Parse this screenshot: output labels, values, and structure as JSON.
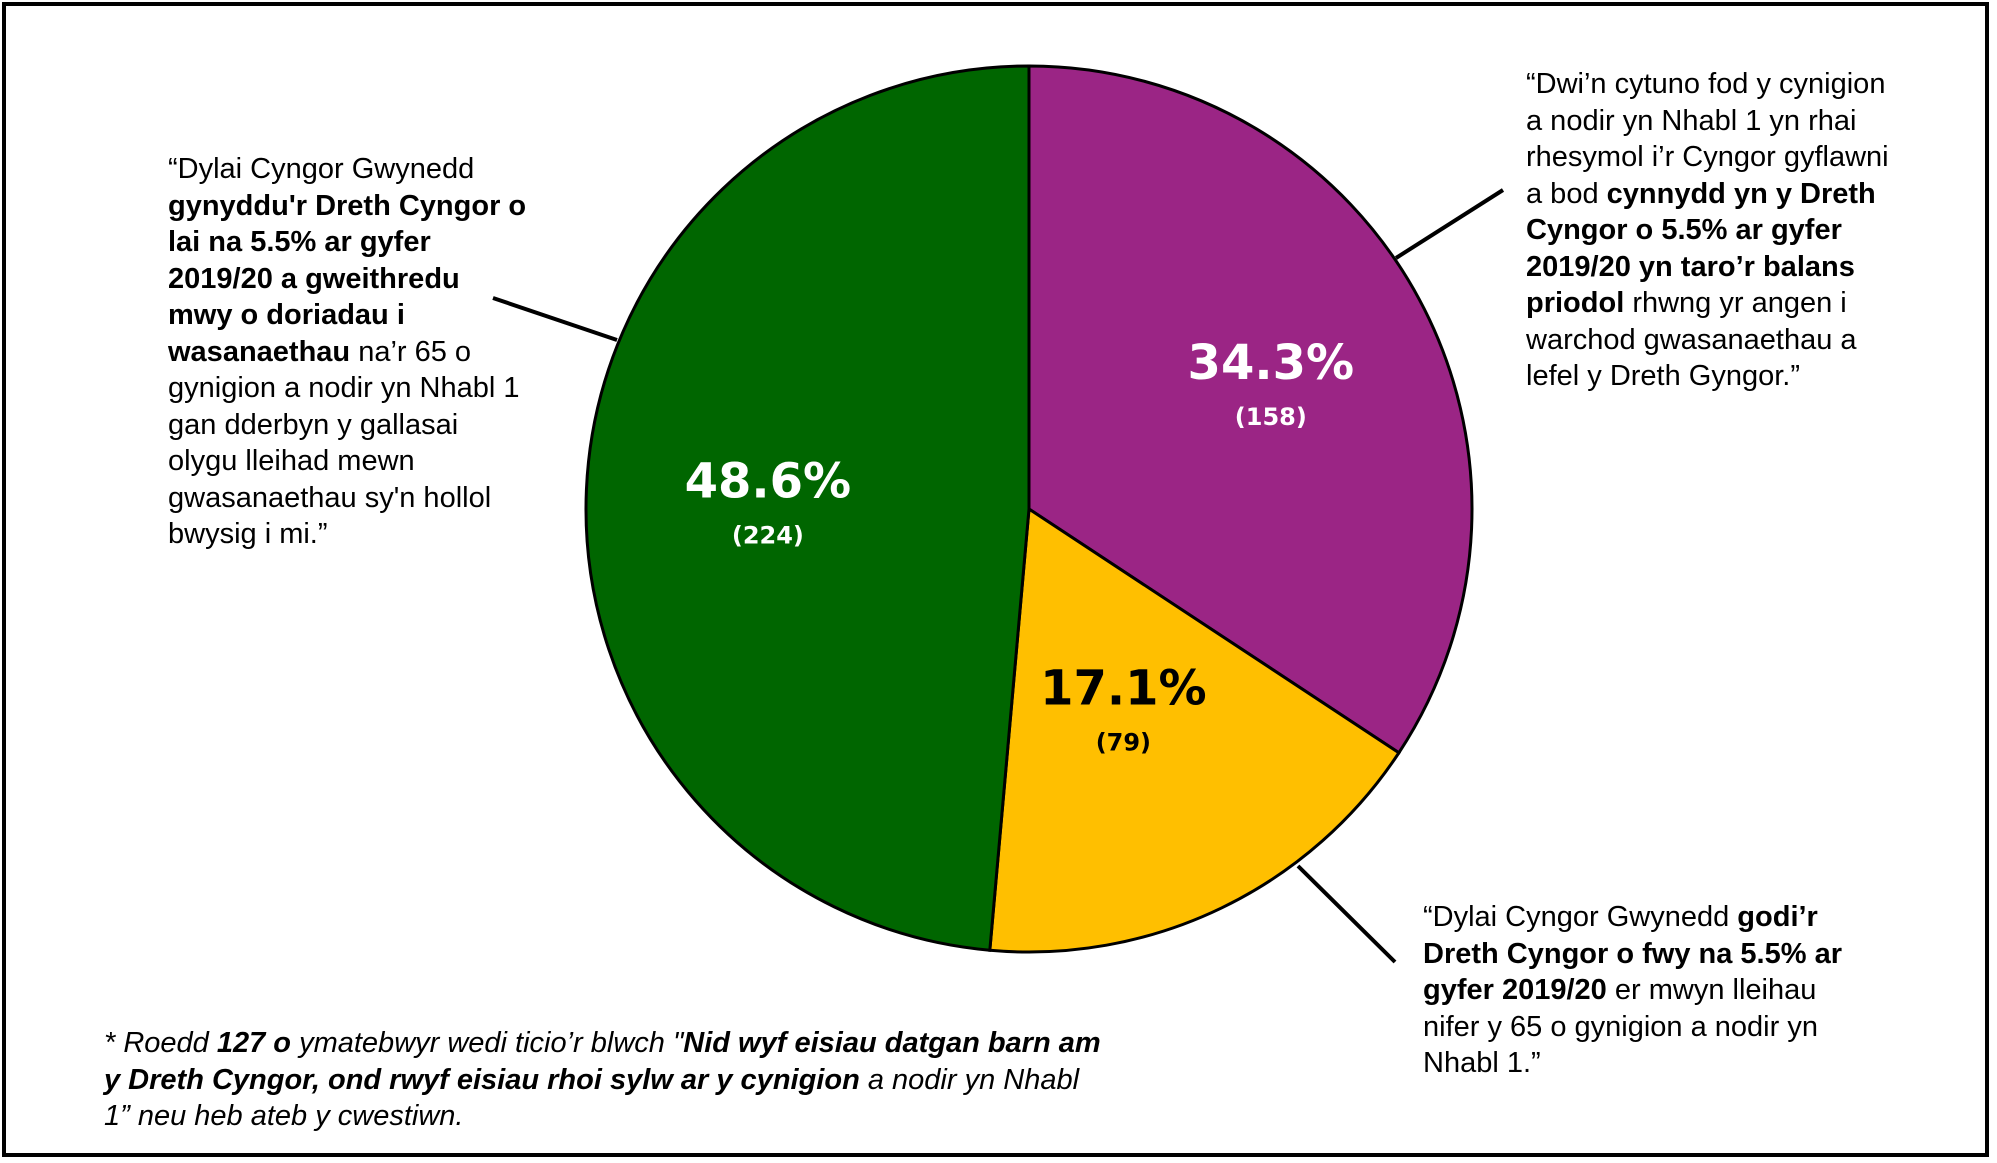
{
  "chart_data": {
    "type": "pie",
    "slices": [
      {
        "label": "34.3%",
        "count": "(158)",
        "value": 158,
        "percent": 34.3,
        "color": "#9b2585",
        "label_color": "#ffffff"
      },
      {
        "label": "17.1%",
        "count": "(79)",
        "value": 79,
        "percent": 17.1,
        "color": "#ffbf00",
        "label_color": "#000000"
      },
      {
        "label": "48.6%",
        "count": "(224)",
        "value": 224,
        "percent": 48.6,
        "color": "#006600",
        "label_color": "#ffffff"
      }
    ],
    "start_angle": "12 o'clock",
    "direction": "clockwise"
  },
  "annotations": {
    "green": {
      "p1": "“Dylai Cyngor Gwynedd ",
      "b1": "gynyddu'r Dreth Cyngor o lai na 5.5% ar gyfer 2019/20 a gweithredu mwy o doriadau i wasanaethau",
      "p2": " na’r 65 o gynigion a nodir yn Nhabl 1 gan dderbyn y gallasai olygu lleihad mewn gwasanaethau sy'n hollol bwysig i mi.”"
    },
    "purple": {
      "p1": "“Dwi’n cytuno fod y cynigion a nodir yn Nhabl 1 yn rhai rhesymol i’r Cyngor gyflawni a bod ",
      "b1": "cynnydd yn y Dreth Cyngor o 5.5% ar gyfer 2019/20 yn taro’r balans priodol",
      "p2": " rhwng yr angen i warchod gwasanaethau a lefel y Dreth Gyngor.”"
    },
    "yellow": {
      "p1": "“Dylai Cyngor Gwynedd ",
      "b1": "godi’r Dreth Cyngor o fwy na 5.5% ar gyfer 2019/20",
      "p2": " er mwyn lleihau nifer y 65 o gynigion a nodir yn Nhabl 1.”"
    }
  },
  "footnote": {
    "p1": "* Roedd ",
    "b1": "127 o",
    "p2": " ymatebwyr wedi ticio’r blwch \"",
    "b2": "Nid wyf eisiau datgan barn am y Dreth Cyngor, ond rwyf eisiau rhoi sylw ar y cynigion",
    "p3": " a nodir yn Nhabl 1” neu heb ateb y cwestiwn."
  }
}
